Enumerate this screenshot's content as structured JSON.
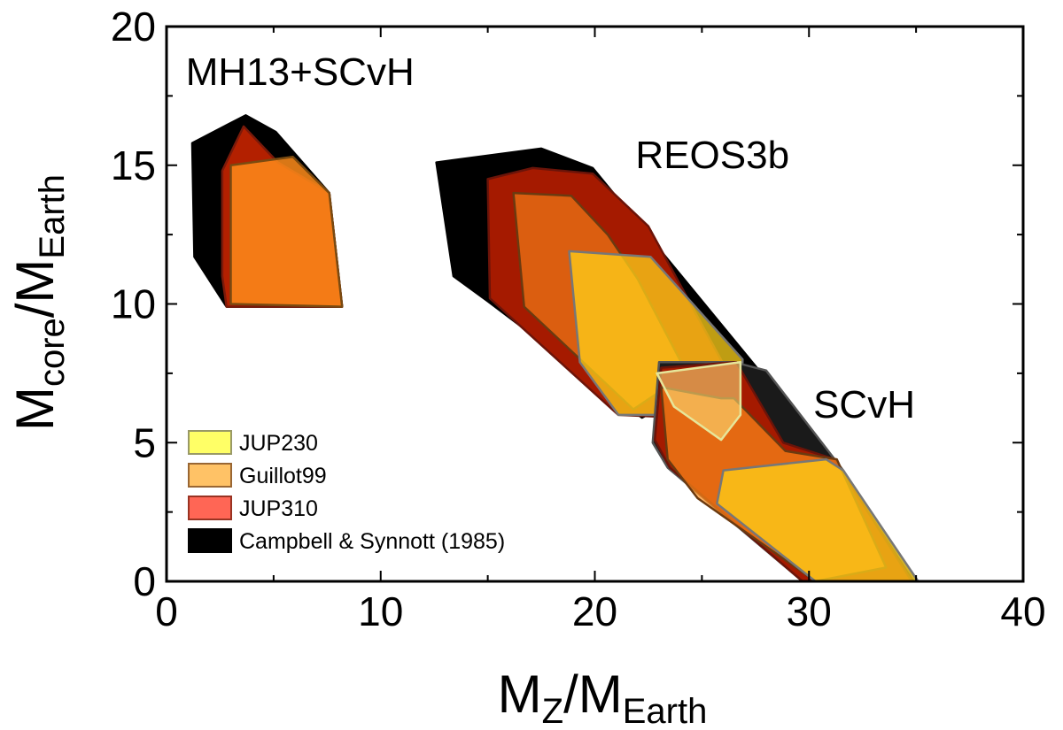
{
  "chart_data": {
    "type": "area",
    "x_axis": {
      "label_main": "M",
      "label_sub1": "Z",
      "label_slash": "/M",
      "label_sub2": "Earth",
      "range": [
        0,
        40
      ],
      "ticks": [
        0,
        10,
        20,
        30,
        40
      ]
    },
    "y_axis": {
      "label_main": "M",
      "label_sub1": "core",
      "label_slash": "/M",
      "label_sub2": "Earth",
      "range": [
        0,
        20
      ],
      "ticks": [
        0,
        5,
        10,
        15,
        20
      ]
    },
    "region_labels": [
      {
        "text": "MH13+SCvH",
        "x": 0.9,
        "y": 17.9
      },
      {
        "text": "REOS3b",
        "x": 21.9,
        "y": 14.9
      },
      {
        "text": "SCvH",
        "x": 30.2,
        "y": 5.9
      }
    ],
    "legend": [
      {
        "label": "JUP230",
        "color": "#ffff66",
        "stroke": "#999966"
      },
      {
        "label": "Guillot99",
        "color": "#ffc266",
        "stroke": "#996633"
      },
      {
        "label": "JUP310",
        "color": "#ff6655",
        "stroke": "#993322"
      },
      {
        "label": "Campbell & Synnott (1985)",
        "color": "#000000",
        "stroke": "#000000"
      }
    ],
    "series": [
      {
        "name": "Campbell & Synnott (1985) MH13+SCvH",
        "color": "#000000",
        "opacity": 1,
        "stroke": "#000000",
        "points": [
          [
            1.2,
            15.8
          ],
          [
            3.7,
            16.8
          ],
          [
            5.1,
            16.2
          ],
          [
            7.6,
            14.0
          ],
          [
            8.2,
            9.9
          ],
          [
            2.8,
            9.9
          ],
          [
            1.3,
            11.7
          ]
        ]
      },
      {
        "name": "JUP310 MH13+SCvH",
        "color": "#b32000",
        "opacity": 1,
        "stroke": "#7a1a0a",
        "points": [
          [
            2.6,
            14.8
          ],
          [
            3.6,
            16.4
          ],
          [
            5.2,
            15.1
          ],
          [
            7.6,
            14.0
          ],
          [
            8.2,
            9.9
          ],
          [
            2.8,
            9.9
          ],
          [
            2.6,
            11.0
          ]
        ]
      },
      {
        "name": "Guillot99 MH13+SCvH",
        "color": "#ff8c1a",
        "opacity": 0.85,
        "stroke": "#7a4a10",
        "points": [
          [
            3.0,
            15.0
          ],
          [
            5.9,
            15.3
          ],
          [
            7.6,
            14.0
          ],
          [
            8.2,
            9.9
          ],
          [
            3.0,
            10.0
          ]
        ]
      },
      {
        "name": "Campbell & Synnott (1985) REOS3b",
        "color": "#000000",
        "opacity": 1,
        "stroke": "#000000",
        "points": [
          [
            12.6,
            15.1
          ],
          [
            17.5,
            15.6
          ],
          [
            19.9,
            14.9
          ],
          [
            31.5,
            4.0
          ],
          [
            28.0,
            5.0
          ],
          [
            26.5,
            7.6
          ],
          [
            22.2,
            5.9
          ],
          [
            15.0,
            10.1
          ],
          [
            13.4,
            11.0
          ]
        ]
      },
      {
        "name": "JUP310 REOS3b",
        "color": "#a51a00",
        "opacity": 1,
        "stroke": "#6b1409",
        "points": [
          [
            15.0,
            14.5
          ],
          [
            17.1,
            14.9
          ],
          [
            19.9,
            14.7
          ],
          [
            22.5,
            12.8
          ],
          [
            28.0,
            5.0
          ],
          [
            27.0,
            5.8
          ],
          [
            21.1,
            6.0
          ],
          [
            15.1,
            10.2
          ]
        ]
      },
      {
        "name": "Guillot99 REOS3b",
        "color": "#ff8c1a",
        "opacity": 0.6,
        "stroke": "#6b3a10",
        "points": [
          [
            16.2,
            14.0
          ],
          [
            18.9,
            13.9
          ],
          [
            20.6,
            12.5
          ],
          [
            22.0,
            10.9
          ],
          [
            24.3,
            7.5
          ],
          [
            21.8,
            6.2
          ],
          [
            16.7,
            9.9
          ]
        ]
      },
      {
        "name": "JUP230 REOS3b",
        "color": "#ffd21a",
        "opacity": 0.75,
        "stroke": "#777777",
        "points": [
          [
            18.8,
            11.9
          ],
          [
            22.6,
            11.7
          ],
          [
            26.9,
            8.0
          ],
          [
            26.8,
            6.0
          ],
          [
            21.1,
            6.0
          ],
          [
            19.3,
            7.9
          ]
        ]
      },
      {
        "name": "Campbell & Synnott (1985) SCvH",
        "color": "#1a1a1a",
        "opacity": 1,
        "stroke": "#555555",
        "points": [
          [
            23.0,
            7.9
          ],
          [
            26.5,
            7.9
          ],
          [
            28.0,
            7.6
          ],
          [
            31.6,
            4.0
          ],
          [
            35.0,
            0.0
          ],
          [
            29.7,
            0.0
          ],
          [
            23.4,
            4.1
          ],
          [
            22.7,
            5.0
          ]
        ]
      },
      {
        "name": "JUP310 SCvH",
        "color": "#a51a00",
        "opacity": 1,
        "stroke": "#6b1409",
        "points": [
          [
            23.1,
            7.7
          ],
          [
            26.6,
            7.9
          ],
          [
            28.8,
            5.0
          ],
          [
            31.2,
            4.4
          ],
          [
            34.8,
            0.0
          ],
          [
            29.7,
            0.0
          ],
          [
            23.5,
            4.1
          ],
          [
            22.8,
            5.1
          ]
        ]
      },
      {
        "name": "Guillot99 SCvH",
        "color": "#ff8c1a",
        "opacity": 0.7,
        "stroke": "#6b3a10",
        "points": [
          [
            23.1,
            7.0
          ],
          [
            25.9,
            6.6
          ],
          [
            26.5,
            6.6
          ],
          [
            28.9,
            4.7
          ],
          [
            31.3,
            4.4
          ],
          [
            33.6,
            0.5
          ],
          [
            30.3,
            0.0
          ],
          [
            24.8,
            3.0
          ],
          [
            23.4,
            4.4
          ]
        ]
      },
      {
        "name": "JUP230 SCvH",
        "color": "#ffd21a",
        "opacity": 0.75,
        "stroke": "#777777",
        "points": [
          [
            26.0,
            4.0
          ],
          [
            30.8,
            4.4
          ],
          [
            31.6,
            4.0
          ],
          [
            35.1,
            0.0
          ],
          [
            30.3,
            0.0
          ],
          [
            25.7,
            2.8
          ]
        ]
      },
      {
        "name": "JUP230 upper SCvH",
        "color": "#ffea80",
        "opacity": 0.55,
        "stroke": "#e6e69a",
        "points": [
          [
            22.9,
            7.5
          ],
          [
            25.8,
            7.8
          ],
          [
            26.8,
            7.9
          ],
          [
            26.8,
            6.0
          ],
          [
            25.9,
            5.1
          ],
          [
            23.7,
            6.3
          ]
        ]
      }
    ]
  }
}
